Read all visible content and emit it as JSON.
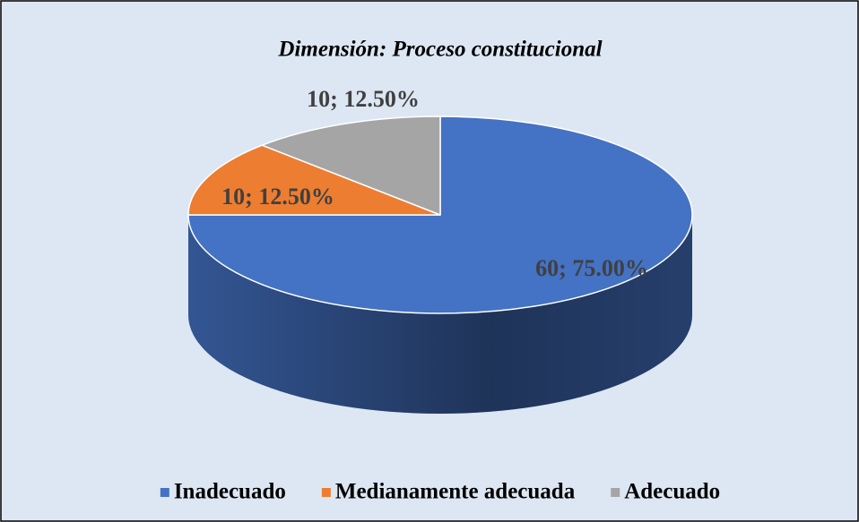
{
  "chart_data": {
    "type": "pie",
    "title": "Dimensión: Proceso constitucional",
    "categories": [
      "Inadecuado",
      "Medianamente adecuada",
      "Adecuado"
    ],
    "values": [
      60,
      10,
      10
    ],
    "value_labels": [
      "60; 75.00%",
      "10; 12.50%",
      "10; 12.50%"
    ],
    "colors": [
      "#4472c4",
      "#ed7d31",
      "#a5a5a5"
    ],
    "legend": "bottom"
  }
}
